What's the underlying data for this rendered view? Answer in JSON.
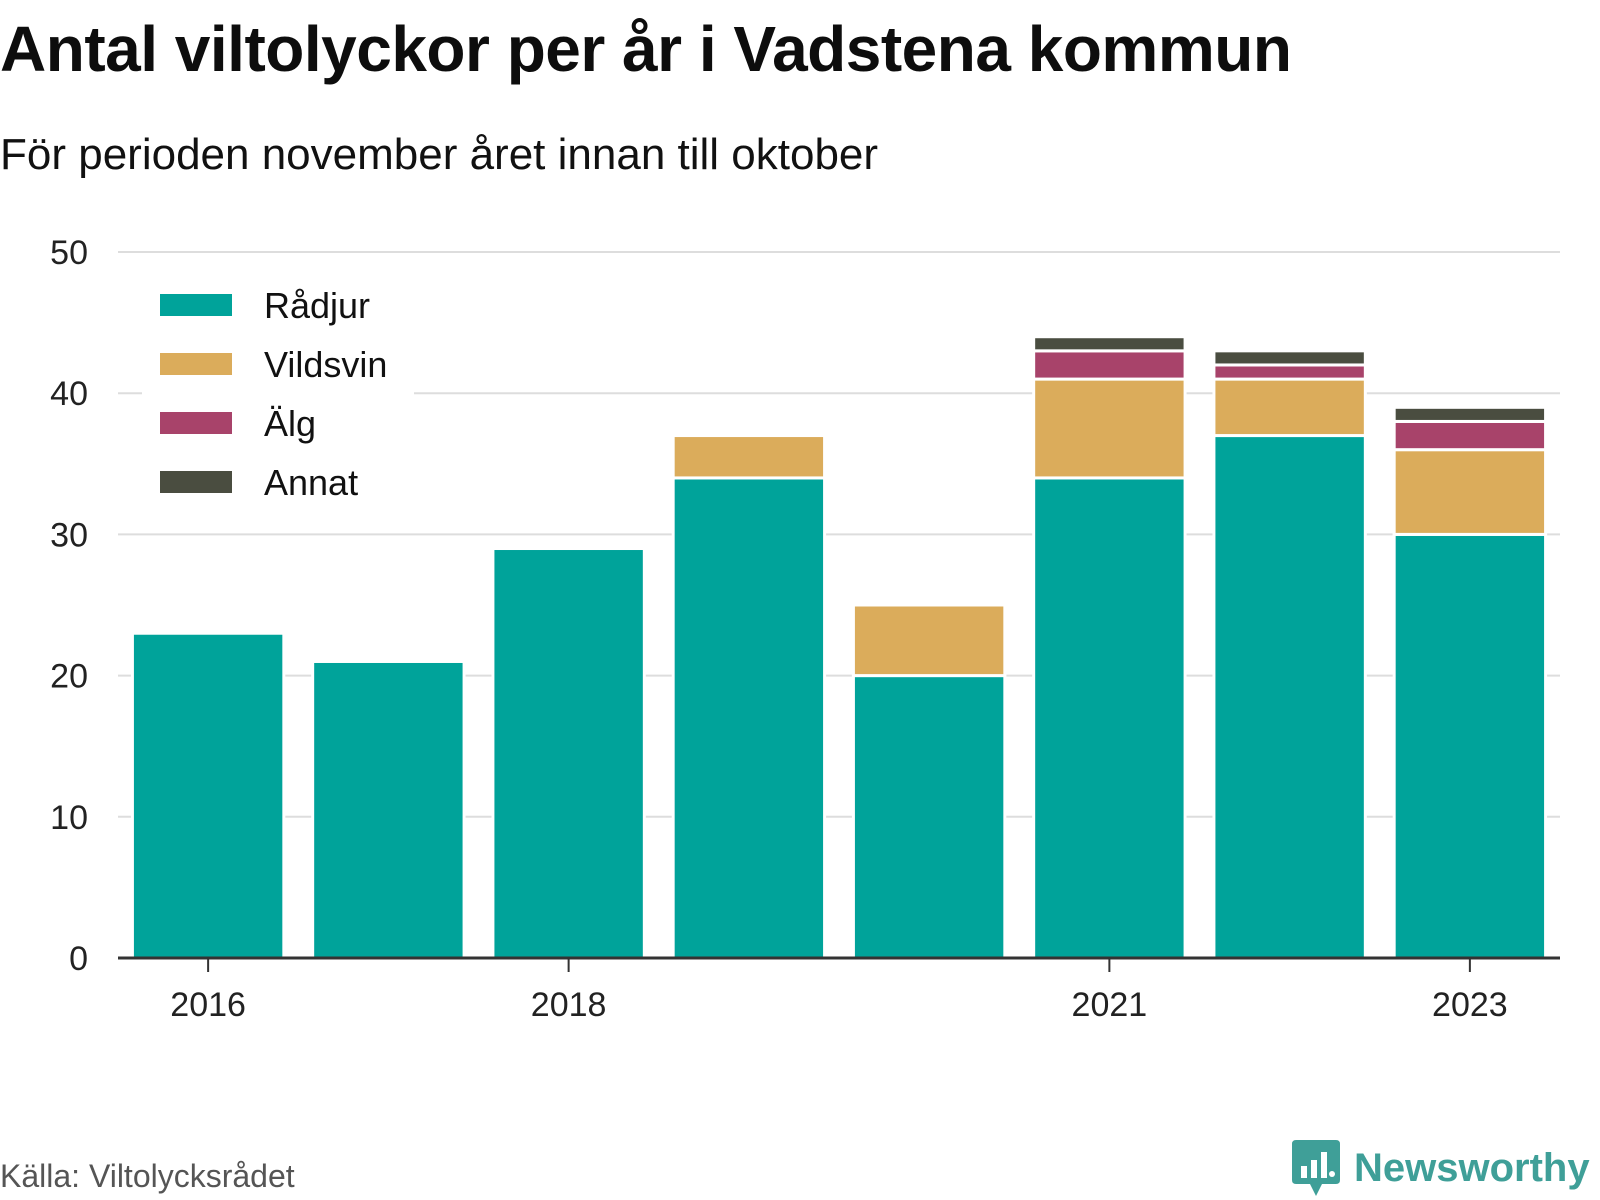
{
  "title": "Antal viltolyckor per år i Vadstena kommun",
  "subtitle": "För perioden november året innan till oktober",
  "source": "Källa: Viltolycksrådet",
  "brand": "Newsworthy",
  "colors": {
    "Rådjur": "#00a39a",
    "Vildsvin": "#dbac5b",
    "Älg": "#a8436a",
    "Annat": "#4a4d40",
    "grid": "#dddddd",
    "axis": "#333333",
    "brand": "#3f9f98"
  },
  "chart_data": {
    "type": "bar",
    "stacked": true,
    "categories": [
      "2016",
      "2017",
      "2018",
      "2019",
      "2020",
      "2021",
      "2022",
      "2023"
    ],
    "x_tick_labels": [
      "2016",
      "2018",
      "2021",
      "2023"
    ],
    "series": [
      {
        "name": "Rådjur",
        "values": [
          23,
          21,
          29,
          34,
          20,
          34,
          37,
          30
        ]
      },
      {
        "name": "Vildsvin",
        "values": [
          0,
          0,
          0,
          3,
          5,
          7,
          4,
          6
        ]
      },
      {
        "name": "Älg",
        "values": [
          0,
          0,
          0,
          0,
          0,
          2,
          1,
          2
        ]
      },
      {
        "name": "Annat",
        "values": [
          0,
          0,
          0,
          0,
          0,
          1,
          1,
          1
        ]
      }
    ],
    "y_ticks": [
      0,
      10,
      20,
      30,
      40,
      50
    ],
    "ylim": [
      0,
      50
    ],
    "grid": true,
    "legend_position": "top-left"
  }
}
